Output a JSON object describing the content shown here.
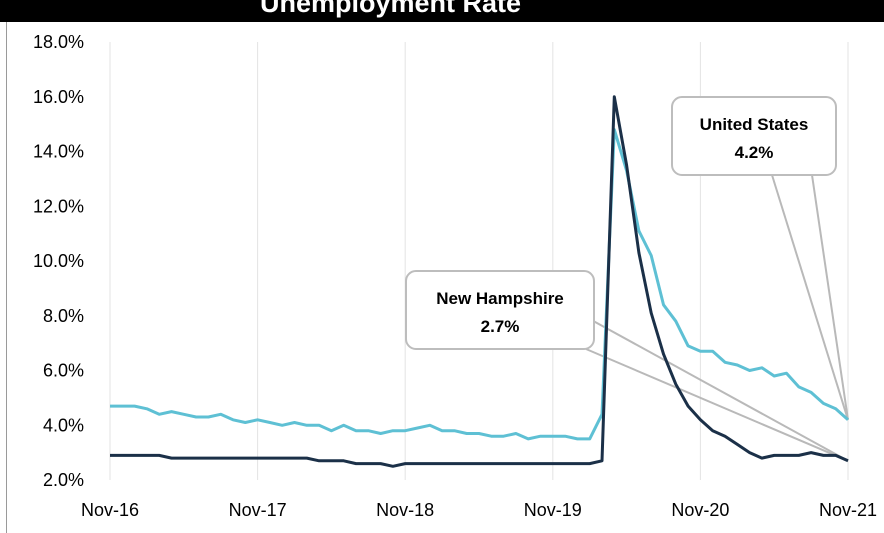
{
  "header": {
    "title": "Unemployment Rate"
  },
  "chart_data": {
    "type": "line",
    "title": "Unemployment Rate",
    "xlabel": "",
    "ylabel": "",
    "x_tick_labels": [
      "Nov-16",
      "Nov-17",
      "Nov-18",
      "Nov-19",
      "Nov-20",
      "Nov-21"
    ],
    "y_tick_labels": [
      "2.0%",
      "4.0%",
      "6.0%",
      "8.0%",
      "10.0%",
      "12.0%",
      "14.0%",
      "16.0%",
      "18.0%"
    ],
    "ylim": [
      2,
      18
    ],
    "x_range_months": [
      "2016-11",
      "2021-11"
    ],
    "grid": "vertical",
    "series": [
      {
        "name": "United States",
        "color": "#5ec0d4",
        "values": [
          4.7,
          4.7,
          4.7,
          4.6,
          4.4,
          4.5,
          4.4,
          4.3,
          4.3,
          4.4,
          4.2,
          4.1,
          4.2,
          4.1,
          4.0,
          4.1,
          4.0,
          4.0,
          3.8,
          4.0,
          3.8,
          3.8,
          3.7,
          3.8,
          3.8,
          3.9,
          4.0,
          3.8,
          3.8,
          3.7,
          3.7,
          3.6,
          3.6,
          3.7,
          3.5,
          3.6,
          3.6,
          3.6,
          3.5,
          3.5,
          4.4,
          14.8,
          13.3,
          11.1,
          10.2,
          8.4,
          7.8,
          6.9,
          6.7,
          6.7,
          6.3,
          6.2,
          6.0,
          6.1,
          5.8,
          5.9,
          5.4,
          5.2,
          4.8,
          4.6,
          4.2
        ]
      },
      {
        "name": "New Hampshire",
        "color": "#1b3048",
        "values": [
          2.9,
          2.9,
          2.9,
          2.9,
          2.9,
          2.8,
          2.8,
          2.8,
          2.8,
          2.8,
          2.8,
          2.8,
          2.8,
          2.8,
          2.8,
          2.8,
          2.8,
          2.7,
          2.7,
          2.7,
          2.6,
          2.6,
          2.6,
          2.5,
          2.6,
          2.6,
          2.6,
          2.6,
          2.6,
          2.6,
          2.6,
          2.6,
          2.6,
          2.6,
          2.6,
          2.6,
          2.6,
          2.6,
          2.6,
          2.6,
          2.7,
          16.0,
          13.5,
          10.3,
          8.1,
          6.6,
          5.5,
          4.7,
          4.2,
          3.8,
          3.6,
          3.3,
          3.0,
          2.8,
          2.9,
          2.9,
          2.9,
          3.0,
          2.9,
          2.9,
          2.7
        ]
      }
    ],
    "annotations": [
      {
        "label": "United States",
        "value": "4.2%"
      },
      {
        "label": "New Hampshire",
        "value": "2.7%"
      }
    ]
  }
}
